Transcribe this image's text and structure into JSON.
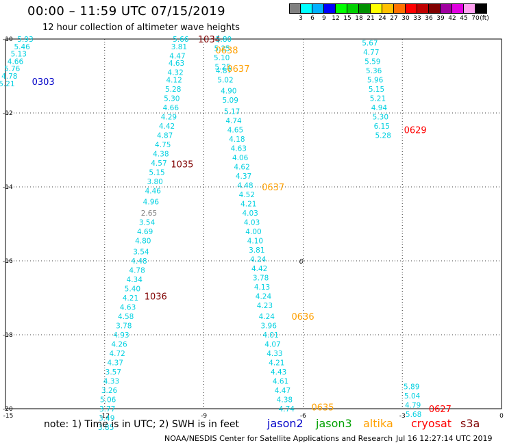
{
  "title": "00:00 – 11:59 UTC 07/15/2019",
  "subtitle": "12 hour collection of altimeter wave heights",
  "legend": {
    "colors": [
      "#808080",
      "#00ffff",
      "#00b0ff",
      "#0000ff",
      "#00ff00",
      "#00d000",
      "#009000",
      "#ffff00",
      "#ffc000",
      "#ff7000",
      "#ff0000",
      "#c00000",
      "#800000",
      "#a000a0",
      "#e000e0",
      "#ff9ff0",
      "#000000"
    ],
    "labels": [
      "3",
      "6",
      "9",
      "12",
      "15",
      "18",
      "21",
      "24",
      "27",
      "30",
      "33",
      "36",
      "39",
      "42",
      "45",
      "70",
      "(ft)"
    ]
  },
  "axes": {
    "x_ticks": [
      "-15",
      "-12",
      "-9",
      "-6",
      "-3",
      "0"
    ],
    "y_ticks": [
      "-10",
      "-12",
      "-14",
      "-16",
      "-18",
      "-20"
    ]
  },
  "tracks": [
    {
      "name": "0303",
      "label_color": "#0000c8",
      "label_x": -14.2,
      "label_y": -11.15,
      "points": [
        [
          -14.4,
          -10.0,
          "5.93"
        ],
        [
          -14.5,
          -10.2,
          "5.46"
        ],
        [
          -14.6,
          -10.4,
          "5.13"
        ],
        [
          -14.7,
          -10.6,
          "4.66"
        ],
        [
          -14.8,
          -10.8,
          "5.76"
        ],
        [
          -14.88,
          -11.0,
          "4.78"
        ],
        [
          -14.96,
          -11.2,
          "5.21"
        ]
      ]
    },
    {
      "name": "1034",
      "label_color": "#800000",
      "label_x": -9.18,
      "label_y": -10.0,
      "points": [
        [
          -9.7,
          -10.0,
          "5.66"
        ],
        [
          -9.75,
          -10.2,
          "3.81"
        ],
        [
          -9.8,
          -10.45,
          "4.47"
        ],
        [
          -9.83,
          -10.65,
          "4.63"
        ],
        [
          -9.86,
          -10.9,
          "4.32"
        ],
        [
          -9.9,
          -11.1,
          "4.12"
        ],
        [
          -9.93,
          -11.35,
          "5.28"
        ],
        [
          -9.97,
          -11.6,
          "5.30"
        ],
        [
          -10.0,
          -11.85,
          "4.66"
        ],
        [
          -10.06,
          -12.1,
          "4.29"
        ],
        [
          -10.12,
          -12.35,
          "4.42"
        ],
        [
          -10.18,
          -12.6,
          "4.87"
        ],
        [
          -10.24,
          -12.85,
          "4.75"
        ],
        [
          -10.3,
          -13.1,
          "4.38"
        ],
        [
          -10.36,
          -13.35,
          "4.57"
        ],
        [
          -10.42,
          -13.6,
          "5.15"
        ],
        [
          -10.48,
          -13.85,
          "3.80"
        ],
        [
          -10.54,
          -14.1,
          "4.46"
        ],
        [
          -10.6,
          -14.4,
          "4.96"
        ],
        [
          -10.66,
          -14.7,
          "2.65"
        ],
        [
          -10.72,
          -14.95,
          "3.54"
        ],
        [
          -10.78,
          -15.2,
          "4.69"
        ],
        [
          -10.84,
          -15.45,
          "4.80"
        ],
        [
          -10.9,
          -15.75,
          "3.54"
        ],
        [
          -10.96,
          -16.0,
          "4.48"
        ],
        [
          -11.02,
          -16.25,
          "4.78"
        ],
        [
          -11.1,
          -16.5,
          "4.34"
        ],
        [
          -11.16,
          -16.75,
          "5.40"
        ],
        [
          -11.22,
          -17.0,
          "4.21"
        ],
        [
          -11.3,
          -17.25,
          "4.63"
        ],
        [
          -11.36,
          -17.5,
          "4.58"
        ],
        [
          -11.42,
          -17.75,
          "3.78"
        ],
        [
          -11.5,
          -18.0,
          "4.93"
        ],
        [
          -11.56,
          -18.25,
          "4.26"
        ],
        [
          -11.62,
          -18.5,
          "4.72"
        ],
        [
          -11.68,
          -18.75,
          "4.37"
        ],
        [
          -11.74,
          -19.0,
          "3.57"
        ],
        [
          -11.8,
          -19.25,
          "4.33"
        ],
        [
          -11.86,
          -19.5,
          "3.26"
        ],
        [
          -11.9,
          -19.75,
          "5.06"
        ],
        [
          -11.92,
          -20.0,
          "3.77"
        ],
        [
          -11.94,
          -20.25,
          "3.49"
        ],
        [
          -11.96,
          -20.5,
          "3.85"
        ]
      ]
    },
    {
      "name": "1035",
      "label_color": "#800000",
      "label_x": -10.0,
      "label_y": -13.38,
      "points": []
    },
    {
      "name": "1036",
      "label_color": "#800000",
      "label_x": -10.8,
      "label_y": -16.95,
      "points": []
    },
    {
      "name": "0638",
      "label_color": "#ffa000",
      "label_x": -8.65,
      "label_y": -10.3,
      "points": [
        [
          -8.4,
          -10.0,
          "5.80"
        ],
        [
          -8.45,
          -10.25,
          "5.25"
        ],
        [
          -8.46,
          -10.5,
          "5.10"
        ],
        [
          -8.43,
          -10.75,
          "5.25"
        ],
        [
          -8.4,
          -10.85,
          "4.87"
        ],
        [
          -8.35,
          -11.1,
          "5.02"
        ],
        [
          -8.25,
          -11.4,
          "4.90"
        ],
        [
          -8.2,
          -11.65,
          "5.09"
        ],
        [
          -8.15,
          -11.95,
          "5.17"
        ],
        [
          -8.1,
          -12.2,
          "4.74"
        ],
        [
          -8.05,
          -12.45,
          "4.65"
        ],
        [
          -8.0,
          -12.7,
          "4.18"
        ],
        [
          -7.95,
          -12.95,
          "4.63"
        ],
        [
          -7.9,
          -13.2,
          "4.06"
        ],
        [
          -7.85,
          -13.45,
          "4.62"
        ],
        [
          -7.8,
          -13.7,
          "4.37"
        ],
        [
          -7.75,
          -13.95,
          "4.48"
        ],
        [
          -7.7,
          -14.2,
          "4.52"
        ],
        [
          -7.65,
          -14.45,
          "4.21"
        ],
        [
          -7.6,
          -14.7,
          "4.03"
        ],
        [
          -7.55,
          -14.95,
          "4.03"
        ],
        [
          -7.5,
          -15.2,
          "4.00"
        ],
        [
          -7.45,
          -15.45,
          "4.10"
        ],
        [
          -7.4,
          -15.7,
          "3.81"
        ],
        [
          -7.36,
          -15.95,
          "4.24"
        ],
        [
          -7.32,
          -16.2,
          "4.42"
        ],
        [
          -7.28,
          -16.45,
          "3.78"
        ],
        [
          -7.24,
          -16.7,
          "4.13"
        ],
        [
          -7.2,
          -16.95,
          "4.24"
        ],
        [
          -7.16,
          -17.2,
          "4.23"
        ],
        [
          -7.1,
          -17.5,
          "4.24"
        ],
        [
          -7.04,
          -17.75,
          "3.96"
        ],
        [
          -6.98,
          -18.0,
          "4.01"
        ],
        [
          -6.92,
          -18.25,
          "4.07"
        ],
        [
          -6.86,
          -18.5,
          "4.33"
        ],
        [
          -6.8,
          -18.75,
          "4.21"
        ],
        [
          -6.74,
          -19.0,
          "4.43"
        ],
        [
          -6.68,
          -19.25,
          "4.61"
        ],
        [
          -6.62,
          -19.5,
          "4.47"
        ],
        [
          -6.56,
          -19.75,
          "4.38"
        ],
        [
          -6.5,
          -20.0,
          "4.74"
        ]
      ]
    },
    {
      "name": "0637",
      "label_color": "#ffa000",
      "label_x": -8.3,
      "label_y": -10.8,
      "points": []
    },
    {
      "name": "0637",
      "label_color": "#ffa000",
      "label_x": -7.25,
      "label_y": -14.0,
      "points": []
    },
    {
      "name": "0636",
      "label_color": "#ffa000",
      "label_x": -6.35,
      "label_y": -17.5,
      "points": []
    },
    {
      "name": "0635",
      "label_color": "#ffa000",
      "label_x": -5.75,
      "label_y": -19.95,
      "points": []
    },
    {
      "name": "0629",
      "label_color": "#ff0000",
      "label_x": -2.95,
      "label_y": -12.45,
      "points": [
        [
          -3.98,
          -10.1,
          "5.67"
        ],
        [
          -3.94,
          -10.35,
          "4.77"
        ],
        [
          -3.9,
          -10.6,
          "5.59"
        ],
        [
          -3.86,
          -10.85,
          "5.36"
        ],
        [
          -3.82,
          -11.1,
          "5.96"
        ],
        [
          -3.78,
          -11.35,
          "5.15"
        ],
        [
          -3.74,
          -11.6,
          "5.21"
        ],
        [
          -3.7,
          -11.85,
          "4.94"
        ],
        [
          -3.66,
          -12.1,
          "5.30"
        ],
        [
          -3.62,
          -12.35,
          "6.15"
        ],
        [
          -3.58,
          -12.6,
          "5.28"
        ]
      ]
    },
    {
      "name": "0627",
      "label_color": "#ff0000",
      "label_x": -2.2,
      "label_y": -20.0,
      "points": [
        [
          -2.72,
          -19.4,
          "5.89"
        ],
        [
          -2.7,
          -19.65,
          "5.04"
        ],
        [
          -2.68,
          -19.9,
          "4.79"
        ],
        [
          -2.66,
          -20.15,
          "5.68"
        ]
      ]
    }
  ],
  "point_colors": {
    "default": "#00d0e0",
    "low": "#808080"
  },
  "zero_contour_label": "0",
  "note": "note: 1) Time is in UTC; 2) SWH is in feet",
  "satellites": [
    {
      "name": "jason2",
      "color": "#0000c8"
    },
    {
      "name": "jason3",
      "color": "#00a000"
    },
    {
      "name": "altika",
      "color": "#ffa000"
    },
    {
      "name": "cryosat",
      "color": "#ff0000"
    },
    {
      "name": "s3a",
      "color": "#800000"
    }
  ],
  "credit": "NOAA/NESDIS Center for Satellite Applications and Research",
  "timestamp": "Jul 16 12:27:14 UTC 2019"
}
